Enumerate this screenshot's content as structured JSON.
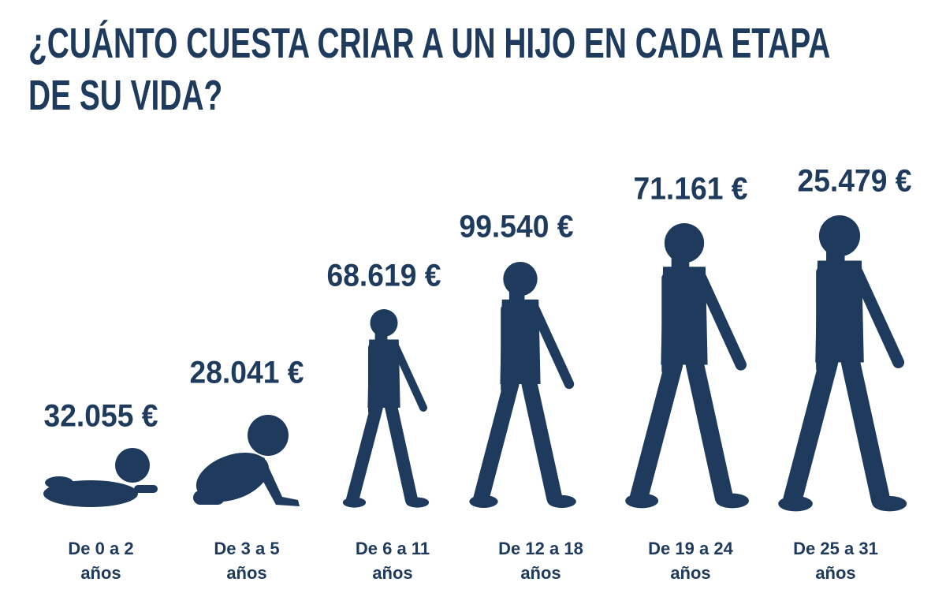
{
  "header": {
    "title_lines": [
      "¿CUÁNTO CUESTA CRIAR A UN HIJO EN CADA ETAPA",
      "DE SU VIDA?"
    ]
  },
  "stages": [
    {
      "amount": "32.055 €",
      "label_lines": [
        "De 0 a 2",
        "años"
      ]
    },
    {
      "amount": "28.041 €",
      "label_lines": [
        "De 3 a 5",
        "años"
      ]
    },
    {
      "amount": "68.619 €",
      "label_lines": [
        "De 6 a 11",
        "años"
      ]
    },
    {
      "amount": "99.540 €",
      "label_lines": [
        "De 12 a 18",
        "años"
      ]
    },
    {
      "amount": "71.161 €",
      "label_lines": [
        "De 19 a 24",
        "años"
      ]
    },
    {
      "amount": "25.479 €",
      "label_lines": [
        "De 25 a 31",
        "años"
      ]
    }
  ]
}
